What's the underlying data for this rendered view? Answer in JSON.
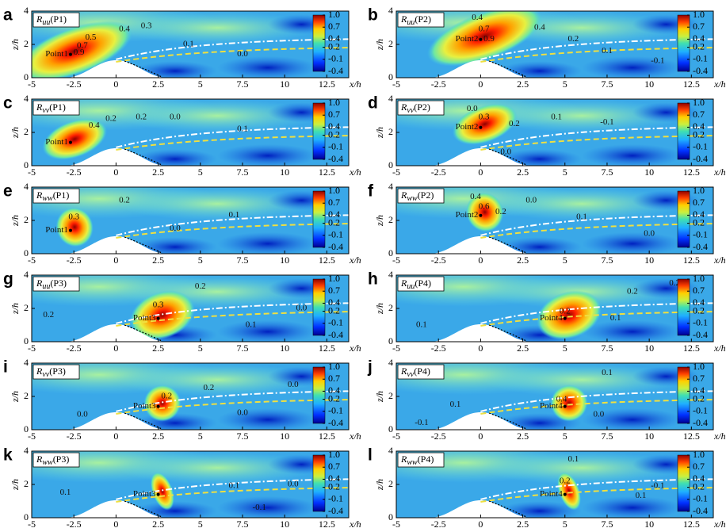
{
  "axes": {
    "xlim": [
      -5,
      13.8
    ],
    "ylim": [
      0,
      4
    ],
    "xticks": [
      -5,
      -2.5,
      0,
      2.5,
      5,
      7.5,
      10,
      12.5
    ],
    "yticks": [
      0,
      2,
      4
    ],
    "xlabel": "x/h",
    "ylabel": "z/h",
    "clim": [
      -0.4,
      1
    ],
    "cticks": [
      {
        "value": 1,
        "label": "1.0"
      },
      0.7,
      0.4,
      0.2,
      -0.1,
      -0.4
    ]
  },
  "chart_data": [
    {
      "type": "contour",
      "letter": "a",
      "symbol": "R",
      "sub": "uu",
      "probe": "(P1)",
      "point_label": "Point1",
      "point": [
        -2.7,
        1.4
      ],
      "annotations": [
        {
          "text": "0.9",
          "x": -2.2,
          "z": 1.5
        },
        {
          "text": "0.7",
          "x": -2,
          "z": 1.9
        },
        {
          "text": "0.5",
          "x": -1.5,
          "z": 2.4
        },
        {
          "text": "0.4",
          "x": 0.5,
          "z": 2.9
        },
        {
          "text": "0.3",
          "x": 1.8,
          "z": 3.1
        },
        {
          "text": "0.1",
          "x": 4.3,
          "z": 2.0
        },
        {
          "text": "0.0",
          "x": 7.5,
          "z": 1.4
        }
      ]
    },
    {
      "type": "contour",
      "letter": "b",
      "symbol": "R",
      "sub": "uu",
      "probe": "(P2)",
      "point_label": "Point2",
      "point": [
        0,
        2.3
      ],
      "annotations": [
        {
          "text": "0.4",
          "x": -0.2,
          "z": 3.6
        },
        {
          "text": "0.7",
          "x": 0.2,
          "z": 2.9
        },
        {
          "text": "0.9",
          "x": 0.5,
          "z": 2.3
        },
        {
          "text": "0.4",
          "x": 3.5,
          "z": 3.0
        },
        {
          "text": "0.2",
          "x": 5.5,
          "z": 2.3
        },
        {
          "text": "0.1",
          "x": 7.5,
          "z": 1.6
        },
        {
          "text": "-0.1",
          "x": 10.5,
          "z": 1.0
        }
      ]
    },
    {
      "type": "contour",
      "letter": "c",
      "symbol": "R",
      "sub": "vv",
      "probe": "(P1)",
      "point_label": "Point1",
      "point": [
        -2.7,
        1.4
      ],
      "annotations": [
        {
          "text": "0.4",
          "x": -1.3,
          "z": 2.4
        },
        {
          "text": "0.2",
          "x": -0.3,
          "z": 2.8
        },
        {
          "text": "0.2",
          "x": 1.5,
          "z": 2.9
        },
        {
          "text": "0.0",
          "x": 3.5,
          "z": 2.9
        },
        {
          "text": "0.1",
          "x": 7.5,
          "z": 2.2
        }
      ]
    },
    {
      "type": "contour",
      "letter": "d",
      "symbol": "R",
      "sub": "vv",
      "probe": "(P2)",
      "point_label": "Point2",
      "point": [
        0,
        2.3
      ],
      "annotations": [
        {
          "text": "0.0",
          "x": -0.5,
          "z": 3.4
        },
        {
          "text": "0.3",
          "x": 0.2,
          "z": 2.9
        },
        {
          "text": "0.2",
          "x": 2,
          "z": 2.5
        },
        {
          "text": "0.1",
          "x": 4.5,
          "z": 2.9
        },
        {
          "text": "-0.1",
          "x": 7.5,
          "z": 2.6
        },
        {
          "text": "0.0",
          "x": 1.5,
          "z": 0.8
        }
      ]
    },
    {
      "type": "contour",
      "letter": "e",
      "symbol": "R",
      "sub": "ww",
      "probe": "(P1)",
      "point_label": "Point1",
      "point": [
        -2.7,
        1.4
      ],
      "annotations": [
        {
          "text": "0.3",
          "x": -2.5,
          "z": 2.2
        },
        {
          "text": "0.2",
          "x": 0.5,
          "z": 3.2
        },
        {
          "text": "0.1",
          "x": 7,
          "z": 2.3
        },
        {
          "text": "0.0",
          "x": 3.5,
          "z": 1.5
        }
      ]
    },
    {
      "type": "contour",
      "letter": "f",
      "symbol": "R",
      "sub": "ww",
      "probe": "(P2)",
      "point_label": "Point2",
      "point": [
        0,
        2.3
      ],
      "annotations": [
        {
          "text": "0.4",
          "x": -0.3,
          "z": 3.4
        },
        {
          "text": "0.6",
          "x": 0.2,
          "z": 2.8
        },
        {
          "text": "0.2",
          "x": 1.2,
          "z": 2.5
        },
        {
          "text": "0.0",
          "x": 3,
          "z": 3.2
        },
        {
          "text": "0.1",
          "x": 6,
          "z": 2.2
        },
        {
          "text": "0.0",
          "x": 10,
          "z": 1.2
        }
      ]
    },
    {
      "type": "contour",
      "letter": "g",
      "symbol": "R",
      "sub": "uu",
      "probe": "(P3)",
      "point_label": "Point3",
      "point": [
        2.5,
        1.4
      ],
      "annotations": [
        {
          "text": "0.2",
          "x": 5,
          "z": 3.3
        },
        {
          "text": "0.3",
          "x": 2.5,
          "z": 2.2
        },
        {
          "text": "0.2",
          "x": -4,
          "z": 1.6
        },
        {
          "text": "0.1",
          "x": 8,
          "z": 1.0
        },
        {
          "text": "0.0",
          "x": 11,
          "z": 2
        }
      ]
    },
    {
      "type": "contour",
      "letter": "h",
      "symbol": "R",
      "sub": "uu",
      "probe": "(P4)",
      "point_label": "Point4",
      "point": [
        5,
        1.4
      ],
      "annotations": [
        {
          "text": "0.2",
          "x": 9,
          "z": 3.0
        },
        {
          "text": "0.2",
          "x": 11.5,
          "z": 3.5
        },
        {
          "text": "0.1",
          "x": -3.5,
          "z": 1.0
        },
        {
          "text": "0.2",
          "x": 5,
          "z": 1.8
        },
        {
          "text": "0.1",
          "x": 8,
          "z": 1.4
        }
      ]
    },
    {
      "type": "contour",
      "letter": "i",
      "symbol": "R",
      "sub": "vv",
      "probe": "(P3)",
      "point_label": "Point3",
      "point": [
        2.5,
        1.4
      ],
      "annotations": [
        {
          "text": "0.2",
          "x": 3,
          "z": 2.0
        },
        {
          "text": "0.2",
          "x": 5.5,
          "z": 2.5
        },
        {
          "text": "0.0",
          "x": 7.5,
          "z": 1.0
        },
        {
          "text": "0.0",
          "x": -2,
          "z": 0.9
        },
        {
          "text": "0.0",
          "x": 10.5,
          "z": 2.7
        }
      ]
    },
    {
      "type": "contour",
      "letter": "j",
      "symbol": "R",
      "sub": "vv",
      "probe": "(P4)",
      "point_label": "Point4",
      "point": [
        5,
        1.4
      ],
      "annotations": [
        {
          "text": "0.1",
          "x": 7.5,
          "z": 3.4
        },
        {
          "text": "0.1",
          "x": -1.5,
          "z": 1.5
        },
        {
          "text": "0.4",
          "x": 4.8,
          "z": 1.8
        },
        {
          "text": "0.0",
          "x": 7,
          "z": 0.9
        },
        {
          "text": "-0.1",
          "x": -3.5,
          "z": 0.4
        }
      ]
    },
    {
      "type": "contour",
      "letter": "k",
      "symbol": "R",
      "sub": "ww",
      "probe": "(P3)",
      "point_label": "Point3",
      "point": [
        2.5,
        1.4
      ],
      "annotations": [
        {
          "text": "0.1",
          "x": -3,
          "z": 1.5
        },
        {
          "text": "0.1",
          "x": 7,
          "z": 1.9
        },
        {
          "text": "0.0",
          "x": 10.5,
          "z": 2.0
        },
        {
          "text": "-0.1",
          "x": 8.5,
          "z": 0.6
        }
      ]
    },
    {
      "type": "contour",
      "letter": "l",
      "symbol": "R",
      "sub": "ww",
      "probe": "(P4)",
      "point_label": "Point4",
      "point": [
        5,
        1.4
      ],
      "annotations": [
        {
          "text": "0.1",
          "x": 5.5,
          "z": 3.5
        },
        {
          "text": "0.2",
          "x": 5,
          "z": 2.2
        },
        {
          "text": "-0.1",
          "x": 10.5,
          "z": 1.9
        },
        {
          "text": "0.1",
          "x": 9.5,
          "z": 1.3
        }
      ]
    }
  ]
}
